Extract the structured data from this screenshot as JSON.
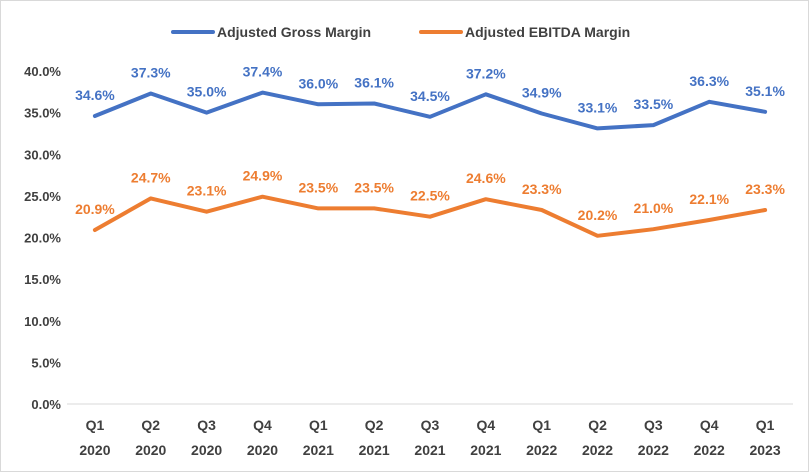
{
  "chart_data": {
    "type": "line",
    "title": "",
    "xlabel": "",
    "ylabel": "",
    "ylim": [
      0,
      40
    ],
    "ystep": 5,
    "y_tick_labels": [
      "0.0%",
      "5.0%",
      "10.0%",
      "15.0%",
      "20.0%",
      "25.0%",
      "30.0%",
      "35.0%",
      "40.0%"
    ],
    "grid": false,
    "legend_position": "top-center",
    "categories": [
      [
        "Q1",
        "2020"
      ],
      [
        "Q2",
        "2020"
      ],
      [
        "Q3",
        "2020"
      ],
      [
        "Q4",
        "2020"
      ],
      [
        "Q1",
        "2021"
      ],
      [
        "Q2",
        "2021"
      ],
      [
        "Q3",
        "2021"
      ],
      [
        "Q4",
        "2021"
      ],
      [
        "Q1",
        "2022"
      ],
      [
        "Q2",
        "2022"
      ],
      [
        "Q3",
        "2022"
      ],
      [
        "Q4",
        "2022"
      ],
      [
        "Q1",
        "2023"
      ]
    ],
    "series": [
      {
        "name": "Adjusted Gross Margin",
        "color": "#4472C4",
        "values": [
          34.6,
          37.3,
          35.0,
          37.4,
          36.0,
          36.1,
          34.5,
          37.2,
          34.9,
          33.1,
          33.5,
          36.3,
          35.1
        ],
        "labels": [
          "34.6%",
          "37.3%",
          "35.0%",
          "37.4%",
          "36.0%",
          "36.1%",
          "34.5%",
          "37.2%",
          "34.9%",
          "33.1%",
          "33.5%",
          "36.3%",
          "35.1%"
        ]
      },
      {
        "name": "Adjusted EBITDA Margin",
        "color": "#ED7D31",
        "values": [
          20.9,
          24.7,
          23.1,
          24.9,
          23.5,
          23.5,
          22.5,
          24.6,
          23.3,
          20.2,
          21.0,
          22.1,
          23.3
        ],
        "labels": [
          "20.9%",
          "24.7%",
          "23.1%",
          "24.9%",
          "23.5%",
          "23.5%",
          "22.5%",
          "24.6%",
          "23.3%",
          "20.2%",
          "21.0%",
          "22.1%",
          "23.3%"
        ]
      }
    ]
  }
}
